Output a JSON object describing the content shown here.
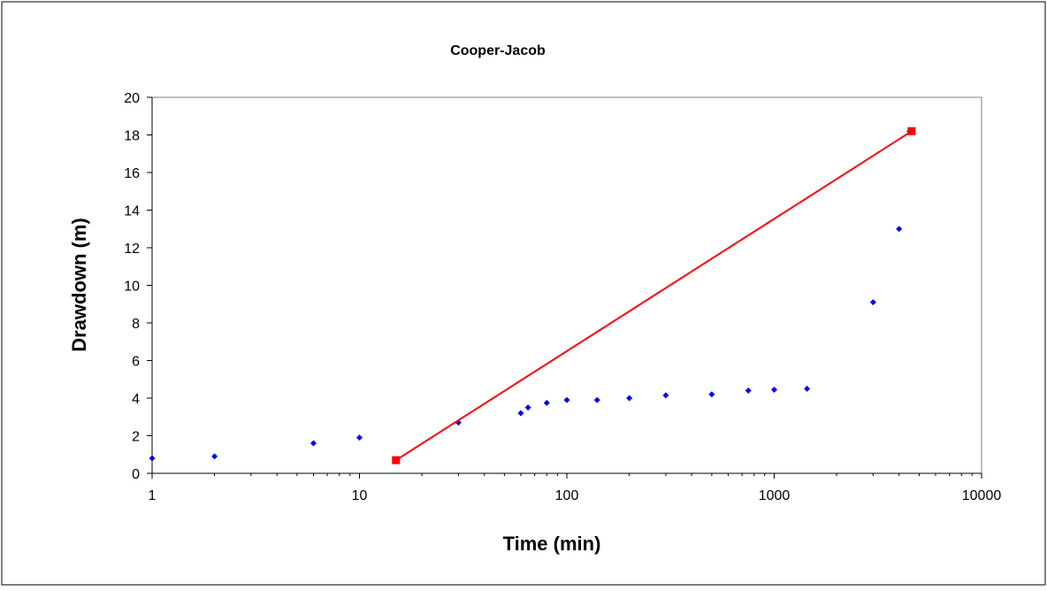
{
  "chart_data": {
    "type": "scatter",
    "title": "Cooper-Jacob",
    "xlabel": "Time (min)",
    "ylabel": "Drawdown (m)",
    "x_scale": "log",
    "xlim": [
      1,
      10000
    ],
    "ylim": [
      0,
      20
    ],
    "x_ticks": [
      "1",
      "10",
      "100",
      "1000",
      "10000"
    ],
    "y_ticks": [
      "0",
      "2",
      "4",
      "6",
      "8",
      "10",
      "12",
      "14",
      "16",
      "18",
      "20"
    ],
    "grid": false,
    "legend": "none",
    "series": [
      {
        "kind": "scatter",
        "color": "#0000ff",
        "marker": "diamond",
        "points": [
          {
            "x": 1,
            "y": 0.8
          },
          {
            "x": 2,
            "y": 0.9
          },
          {
            "x": 6,
            "y": 1.6
          },
          {
            "x": 10,
            "y": 1.9
          },
          {
            "x": 30,
            "y": 2.7
          },
          {
            "x": 60,
            "y": 3.2
          },
          {
            "x": 65,
            "y": 3.5
          },
          {
            "x": 80,
            "y": 3.75
          },
          {
            "x": 100,
            "y": 3.9
          },
          {
            "x": 140,
            "y": 3.9
          },
          {
            "x": 200,
            "y": 4.0
          },
          {
            "x": 300,
            "y": 4.15
          },
          {
            "x": 500,
            "y": 4.2
          },
          {
            "x": 750,
            "y": 4.4
          },
          {
            "x": 1000,
            "y": 4.45
          },
          {
            "x": 1440,
            "y": 4.5
          },
          {
            "x": 3000,
            "y": 9.1
          },
          {
            "x": 4000,
            "y": 13.0
          },
          {
            "x": 4500,
            "y": 18.2
          }
        ]
      },
      {
        "kind": "line",
        "color": "#ff0000",
        "marker": "square",
        "points": [
          {
            "x": 15,
            "y": 0.7
          },
          {
            "x": 4600,
            "y": 18.2
          }
        ]
      }
    ]
  }
}
